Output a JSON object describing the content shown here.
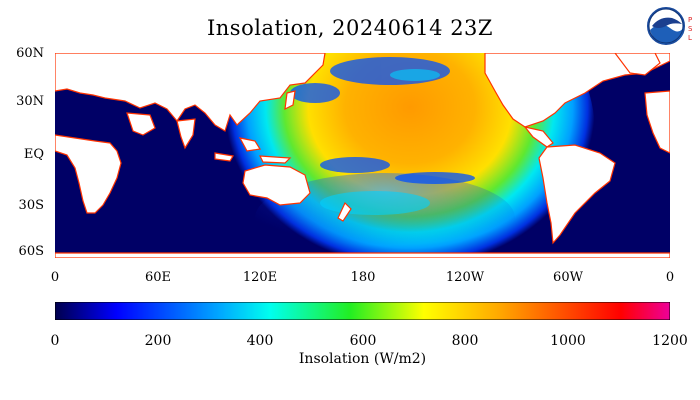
{
  "title": "Insolation, 20240614 23Z",
  "logo": {
    "text": "NOAA",
    "side": "PSL"
  },
  "map": {
    "lat_labels": [
      "60N",
      "30N",
      "EQ",
      "30S",
      "60S"
    ],
    "lon_labels": [
      "0",
      "60E",
      "120E",
      "180",
      "120W",
      "60W",
      "0"
    ],
    "ocean_color": "#000066",
    "land_color": "#ffffff",
    "coast_color": "#ff3300"
  },
  "colorbar": {
    "ticks": [
      "0",
      "200",
      "400",
      "600",
      "800",
      "1000",
      "1200"
    ],
    "label": "Insolation (W/m2)",
    "stops": [
      "#00004d",
      "#0000ff",
      "#00aaff",
      "#00ffee",
      "#22ee22",
      "#ffff00",
      "#ffaa00",
      "#ff5500",
      "#ff0000",
      "#ee0099"
    ]
  }
}
